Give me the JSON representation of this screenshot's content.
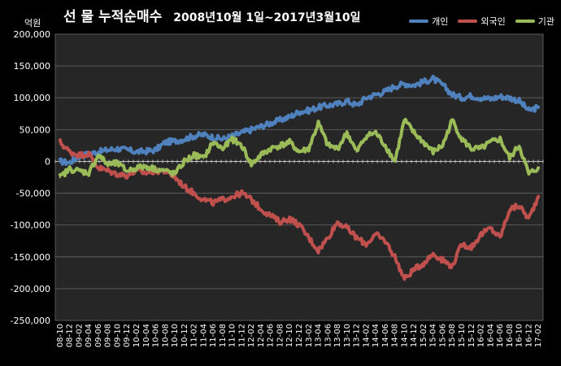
{
  "chart_data": {
    "type": "line",
    "title": "선 물 누적순매수",
    "subtitle": "2008년10월 1일~2017년3월10일",
    "ylabel": "억원",
    "ylim": [
      -250000,
      200000
    ],
    "yticks": [
      "200,000",
      "150,000",
      "100,000",
      "50,000",
      "0",
      "-50,000",
      "-100,000",
      "-150,000",
      "-200,000",
      "-250,000"
    ],
    "grid": true,
    "legend": "top-right",
    "categories": [
      "08-10",
      "08-12",
      "09-02",
      "09-04",
      "09-06",
      "09-08",
      "09-10",
      "09-12",
      "10-02",
      "10-04",
      "10-06",
      "10-08",
      "10-10",
      "10-12",
      "11-02",
      "11-04",
      "11-06",
      "11-08",
      "11-10",
      "11-12",
      "12-02",
      "12-04",
      "12-06",
      "12-08",
      "12-10",
      "12-12",
      "13-02",
      "13-04",
      "13-06",
      "13-08",
      "13-10",
      "13-12",
      "14-02",
      "14-04",
      "14-06",
      "14-08",
      "14-10",
      "14-12",
      "15-02",
      "15-04",
      "15-06",
      "15-08",
      "15-10",
      "15-12",
      "16-02",
      "16-04",
      "16-06",
      "16-08",
      "16-10",
      "16-12",
      "17-02"
    ],
    "series": [
      {
        "name": "개인",
        "color": "#4f81bd",
        "values": [
          0,
          -2000,
          8000,
          12000,
          15000,
          18000,
          20000,
          18000,
          15000,
          16000,
          18000,
          30000,
          32000,
          35000,
          40000,
          42000,
          38000,
          35000,
          40000,
          45000,
          50000,
          55000,
          60000,
          65000,
          70000,
          78000,
          80000,
          85000,
          88000,
          90000,
          95000,
          88000,
          100000,
          105000,
          110000,
          118000,
          122000,
          120000,
          125000,
          130000,
          120000,
          105000,
          100000,
          103000,
          100000,
          98000,
          102000,
          100000,
          95000,
          80000,
          85000
        ]
      },
      {
        "name": "외국인",
        "color": "#c0504d",
        "values": [
          30000,
          15000,
          10000,
          12000,
          -10000,
          -15000,
          -20000,
          -22000,
          -15000,
          -18000,
          -15000,
          -15000,
          -25000,
          -40000,
          -50000,
          -60000,
          -65000,
          -60000,
          -55000,
          -50000,
          -60000,
          -75000,
          -85000,
          -95000,
          -90000,
          -100000,
          -120000,
          -140000,
          -120000,
          -95000,
          -105000,
          -120000,
          -130000,
          -115000,
          -125000,
          -150000,
          -185000,
          -170000,
          -160000,
          -145000,
          -155000,
          -165000,
          -130000,
          -135000,
          -115000,
          -105000,
          -120000,
          -75000,
          -70000,
          -90000,
          -55000
        ]
      },
      {
        "name": "기관",
        "color": "#9bbb59",
        "values": [
          -25000,
          -12000,
          -15000,
          -18000,
          10000,
          -5000,
          -3000,
          -15000,
          -10000,
          -8000,
          -12000,
          -15000,
          -20000,
          0,
          10000,
          5000,
          30000,
          20000,
          35000,
          25000,
          -5000,
          10000,
          20000,
          25000,
          30000,
          15000,
          20000,
          60000,
          25000,
          20000,
          45000,
          15000,
          40000,
          45000,
          25000,
          0,
          65000,
          45000,
          30000,
          15000,
          25000,
          65000,
          35000,
          20000,
          20000,
          30000,
          35000,
          5000,
          25000,
          -20000,
          -10000
        ]
      }
    ]
  }
}
